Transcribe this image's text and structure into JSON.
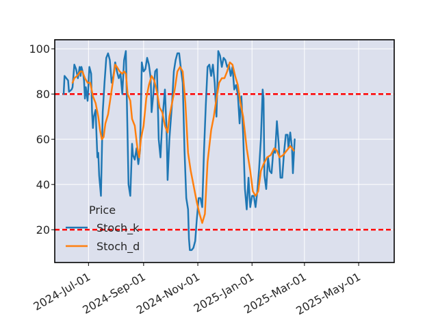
{
  "chart_data": {
    "type": "line",
    "title": "",
    "xlabel": "",
    "ylabel": "",
    "x_ticks": [
      "2024-Jul-01",
      "2024-Sep-01",
      "2024-Nov-01",
      "2025-Jan-01",
      "2025-Mar-01",
      "2025-May-01"
    ],
    "y_ticks": [
      20,
      40,
      60,
      80,
      100
    ],
    "xlim": [
      "2024-05-24",
      "2025-06-10"
    ],
    "ylim": [
      5.5,
      104
    ],
    "grid": true,
    "legend": {
      "title": "Price",
      "placement": "lower-left"
    },
    "hlines": [
      {
        "value": 80,
        "color": "#ff0000",
        "style": "dashed"
      },
      {
        "value": 20,
        "color": "#ff0000",
        "style": "dashed"
      }
    ],
    "series": [
      {
        "name": "Stoch_k",
        "color": "#1f77b4",
        "points": [
          [
            "2024-06-03",
            80
          ],
          [
            "2024-06-04",
            88
          ],
          [
            "2024-06-06",
            87
          ],
          [
            "2024-06-08",
            86
          ],
          [
            "2024-06-09",
            81
          ],
          [
            "2024-06-12",
            82
          ],
          [
            "2024-06-13",
            83
          ],
          [
            "2024-06-15",
            93
          ],
          [
            "2024-06-17",
            91
          ],
          [
            "2024-06-19",
            87
          ],
          [
            "2024-06-21",
            92
          ],
          [
            "2024-06-22",
            88
          ],
          [
            "2024-06-23",
            92
          ],
          [
            "2024-06-25",
            89
          ],
          [
            "2024-06-26",
            86
          ],
          [
            "2024-06-27",
            78
          ],
          [
            "2024-06-28",
            83
          ],
          [
            "2024-06-30",
            77
          ],
          [
            "2024-07-02",
            92
          ],
          [
            "2024-07-04",
            89
          ],
          [
            "2024-07-05",
            72
          ],
          [
            "2024-07-06",
            65
          ],
          [
            "2024-07-07",
            70
          ],
          [
            "2024-07-09",
            73
          ],
          [
            "2024-07-10",
            62
          ],
          [
            "2024-07-11",
            52
          ],
          [
            "2024-07-12",
            54
          ],
          [
            "2024-07-13",
            44
          ],
          [
            "2024-07-15",
            35
          ],
          [
            "2024-07-17",
            72
          ],
          [
            "2024-07-19",
            85
          ],
          [
            "2024-07-21",
            96
          ],
          [
            "2024-07-23",
            98
          ],
          [
            "2024-07-25",
            95
          ],
          [
            "2024-07-27",
            85
          ],
          [
            "2024-07-29",
            88
          ],
          [
            "2024-07-31",
            94
          ],
          [
            "2024-08-02",
            90
          ],
          [
            "2024-08-04",
            87
          ],
          [
            "2024-08-06",
            89
          ],
          [
            "2024-08-08",
            80
          ],
          [
            "2024-08-10",
            95
          ],
          [
            "2024-08-12",
            99
          ],
          [
            "2024-08-14",
            60
          ],
          [
            "2024-08-15",
            40
          ],
          [
            "2024-08-17",
            35
          ],
          [
            "2024-08-19",
            58
          ],
          [
            "2024-08-20",
            53
          ],
          [
            "2024-08-22",
            51
          ],
          [
            "2024-08-24",
            56
          ],
          [
            "2024-08-26",
            49
          ],
          [
            "2024-08-28",
            55
          ],
          [
            "2024-08-30",
            94
          ],
          [
            "2024-09-01",
            90
          ],
          [
            "2024-09-03",
            91
          ],
          [
            "2024-09-05",
            96
          ],
          [
            "2024-09-07",
            93
          ],
          [
            "2024-09-09",
            87
          ],
          [
            "2024-09-10",
            72
          ],
          [
            "2024-09-12",
            80
          ],
          [
            "2024-09-14",
            90
          ],
          [
            "2024-09-16",
            91
          ],
          [
            "2024-09-18",
            60
          ],
          [
            "2024-09-20",
            52
          ],
          [
            "2024-09-22",
            68
          ],
          [
            "2024-09-25",
            82
          ],
          [
            "2024-09-27",
            62
          ],
          [
            "2024-09-28",
            42
          ],
          [
            "2024-09-30",
            60
          ],
          [
            "2024-10-03",
            76
          ],
          [
            "2024-10-05",
            90
          ],
          [
            "2024-10-07",
            95
          ],
          [
            "2024-10-09",
            98
          ],
          [
            "2024-10-11",
            98
          ],
          [
            "2024-10-13",
            91
          ],
          [
            "2024-10-15",
            85
          ],
          [
            "2024-10-17",
            55
          ],
          [
            "2024-10-19",
            34
          ],
          [
            "2024-10-21",
            29
          ],
          [
            "2024-10-22",
            16
          ],
          [
            "2024-10-23",
            11
          ],
          [
            "2024-10-25",
            11
          ],
          [
            "2024-10-27",
            12
          ],
          [
            "2024-10-29",
            15
          ],
          [
            "2024-10-31",
            25
          ],
          [
            "2024-11-02",
            34
          ],
          [
            "2024-11-04",
            34
          ],
          [
            "2024-11-06",
            30
          ],
          [
            "2024-11-08",
            55
          ],
          [
            "2024-11-10",
            75
          ],
          [
            "2024-11-12",
            92
          ],
          [
            "2024-11-14",
            93
          ],
          [
            "2024-11-16",
            88
          ],
          [
            "2024-11-18",
            93
          ],
          [
            "2024-11-20",
            85
          ],
          [
            "2024-11-22",
            70
          ],
          [
            "2024-11-24",
            99
          ],
          [
            "2024-11-26",
            97
          ],
          [
            "2024-11-28",
            92
          ],
          [
            "2024-11-30",
            96
          ],
          [
            "2024-12-02",
            95
          ],
          [
            "2024-12-04",
            92
          ],
          [
            "2024-12-06",
            93
          ],
          [
            "2024-12-08",
            88
          ],
          [
            "2024-12-10",
            92
          ],
          [
            "2024-12-12",
            82
          ],
          [
            "2024-12-14",
            84
          ],
          [
            "2024-12-16",
            80
          ],
          [
            "2024-12-18",
            67
          ],
          [
            "2024-12-20",
            79
          ],
          [
            "2024-12-22",
            62
          ],
          [
            "2024-12-24",
            38
          ],
          [
            "2024-12-26",
            29
          ],
          [
            "2024-12-28",
            43
          ],
          [
            "2024-12-30",
            30
          ],
          [
            "2025-01-01",
            35
          ],
          [
            "2025-01-03",
            35
          ],
          [
            "2025-01-05",
            30
          ],
          [
            "2025-01-07",
            37
          ],
          [
            "2025-01-09",
            47
          ],
          [
            "2025-01-11",
            60
          ],
          [
            "2025-01-13",
            82
          ],
          [
            "2025-01-14",
            78
          ],
          [
            "2025-01-15",
            44
          ],
          [
            "2025-01-17",
            38
          ],
          [
            "2025-01-19",
            52
          ],
          [
            "2025-01-21",
            46
          ],
          [
            "2025-01-23",
            45
          ],
          [
            "2025-01-25",
            55
          ],
          [
            "2025-01-27",
            54
          ],
          [
            "2025-01-29",
            68
          ],
          [
            "2025-01-31",
            58
          ],
          [
            "2025-02-02",
            43
          ],
          [
            "2025-02-04",
            43
          ],
          [
            "2025-02-06",
            54
          ],
          [
            "2025-02-08",
            62
          ],
          [
            "2025-02-10",
            62
          ],
          [
            "2025-02-11",
            56
          ],
          [
            "2025-02-13",
            63
          ],
          [
            "2025-02-15",
            56
          ],
          [
            "2025-02-16",
            45
          ],
          [
            "2025-02-18",
            60
          ]
        ]
      },
      {
        "name": "Stoch_d",
        "color": "#ff7f0e",
        "points": [
          [
            "2024-06-13",
            85
          ],
          [
            "2024-06-15",
            87
          ],
          [
            "2024-06-18",
            88
          ],
          [
            "2024-06-22",
            90
          ],
          [
            "2024-06-24",
            90
          ],
          [
            "2024-06-27",
            87
          ],
          [
            "2024-06-30",
            85
          ],
          [
            "2024-07-03",
            85
          ],
          [
            "2024-07-06",
            79
          ],
          [
            "2024-07-09",
            76
          ],
          [
            "2024-07-12",
            70
          ],
          [
            "2024-07-14",
            64
          ],
          [
            "2024-07-16",
            60
          ],
          [
            "2024-07-18",
            61
          ],
          [
            "2024-07-20",
            67
          ],
          [
            "2024-07-23",
            71
          ],
          [
            "2024-07-26",
            79
          ],
          [
            "2024-07-29",
            87
          ],
          [
            "2024-07-31",
            93
          ],
          [
            "2024-08-02",
            92
          ],
          [
            "2024-08-05",
            90
          ],
          [
            "2024-08-08",
            89
          ],
          [
            "2024-08-10",
            90
          ],
          [
            "2024-08-12",
            89
          ],
          [
            "2024-08-14",
            80
          ],
          [
            "2024-08-17",
            77
          ],
          [
            "2024-08-19",
            69
          ],
          [
            "2024-08-22",
            66
          ],
          [
            "2024-08-25",
            56
          ],
          [
            "2024-08-27",
            52
          ],
          [
            "2024-08-29",
            60
          ],
          [
            "2024-09-01",
            66
          ],
          [
            "2024-09-04",
            78
          ],
          [
            "2024-09-07",
            84
          ],
          [
            "2024-09-10",
            88
          ],
          [
            "2024-09-13",
            86
          ],
          [
            "2024-09-16",
            81
          ],
          [
            "2024-09-19",
            74
          ],
          [
            "2024-09-22",
            72
          ],
          [
            "2024-09-25",
            66
          ],
          [
            "2024-09-28",
            63
          ],
          [
            "2024-09-30",
            70
          ],
          [
            "2024-10-03",
            76
          ],
          [
            "2024-10-06",
            82
          ],
          [
            "2024-10-09",
            90
          ],
          [
            "2024-10-12",
            92
          ],
          [
            "2024-10-15",
            90
          ],
          [
            "2024-10-18",
            76
          ],
          [
            "2024-10-21",
            54
          ],
          [
            "2024-10-24",
            46
          ],
          [
            "2024-10-27",
            40
          ],
          [
            "2024-10-31",
            32
          ],
          [
            "2024-11-03",
            27
          ],
          [
            "2024-11-06",
            23
          ],
          [
            "2024-11-09",
            27
          ],
          [
            "2024-11-12",
            50
          ],
          [
            "2024-11-16",
            64
          ],
          [
            "2024-11-19",
            70
          ],
          [
            "2024-11-22",
            78
          ],
          [
            "2024-11-25",
            85
          ],
          [
            "2024-11-28",
            87
          ],
          [
            "2024-12-01",
            87
          ],
          [
            "2024-12-04",
            90
          ],
          [
            "2024-12-07",
            94
          ],
          [
            "2024-12-10",
            93
          ],
          [
            "2024-12-13",
            88
          ],
          [
            "2024-12-16",
            84
          ],
          [
            "2024-12-19",
            76
          ],
          [
            "2024-12-22",
            70
          ],
          [
            "2024-12-26",
            56
          ],
          [
            "2024-12-30",
            46
          ],
          [
            "2025-01-02",
            37
          ],
          [
            "2025-01-05",
            35
          ],
          [
            "2025-01-08",
            37
          ],
          [
            "2025-01-11",
            46
          ],
          [
            "2025-01-14",
            49
          ],
          [
            "2025-01-18",
            52
          ],
          [
            "2025-01-22",
            53
          ],
          [
            "2025-01-26",
            56
          ],
          [
            "2025-01-29",
            55
          ],
          [
            "2025-02-01",
            52
          ],
          [
            "2025-02-05",
            53
          ],
          [
            "2025-02-09",
            55
          ],
          [
            "2025-02-13",
            57
          ],
          [
            "2025-02-17",
            55
          ]
        ]
      }
    ]
  }
}
